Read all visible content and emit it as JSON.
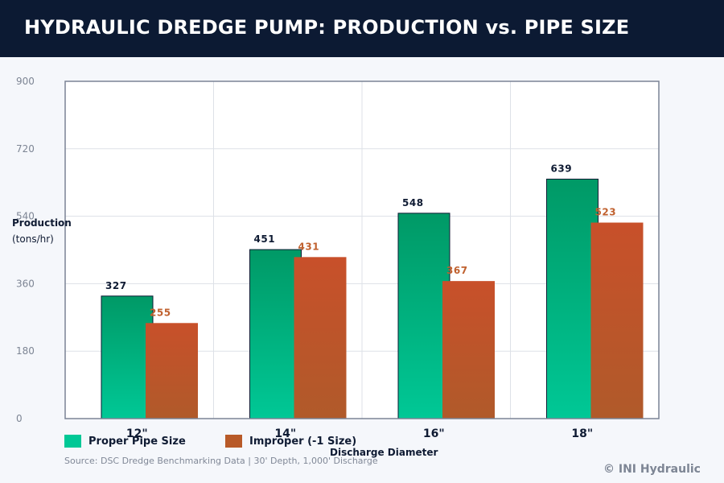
{
  "header": {
    "title": "HYDRAULIC DREDGE PUMP: PRODUCTION vs. PIPE SIZE"
  },
  "colors": {
    "header_bg": "#0c1a33",
    "proper_top": "#009966",
    "proper_bottom": "#00c896",
    "improper_top": "#c8502a",
    "improper_bottom": "#b05a2a",
    "proper_label": "#0f1b33",
    "improper_label": "#c0612f"
  },
  "legend": {
    "items": [
      {
        "label": "Proper Pipe Size",
        "color": "#00c896"
      },
      {
        "label": "Improper (-1 Size)",
        "color": "#b85a28"
      }
    ]
  },
  "footer": {
    "source": "Source: DSC Dredge Benchmarking Data | 30' Depth, 1,000' Discharge",
    "copyright": "© INI Hydraulic"
  },
  "chart_data": {
    "type": "bar",
    "title": "HYDRAULIC DREDGE PUMP: PRODUCTION vs. PIPE SIZE",
    "xlabel": "Discharge Diameter",
    "ylabel": "Production",
    "ylabel_unit": "(tons/hr)",
    "categories": [
      "12\"",
      "14\"",
      "16\"",
      "18\""
    ],
    "series": [
      {
        "name": "Proper Pipe Size",
        "values": [
          327,
          451,
          548,
          639
        ]
      },
      {
        "name": "Improper (-1 Size)",
        "values": [
          255,
          431,
          367,
          523
        ]
      }
    ],
    "ylim": [
      0,
      900
    ],
    "yticks": [
      0,
      180,
      360,
      540,
      720,
      900
    ],
    "grid": true,
    "legend_position": "bottom-left",
    "data_labels": true
  }
}
